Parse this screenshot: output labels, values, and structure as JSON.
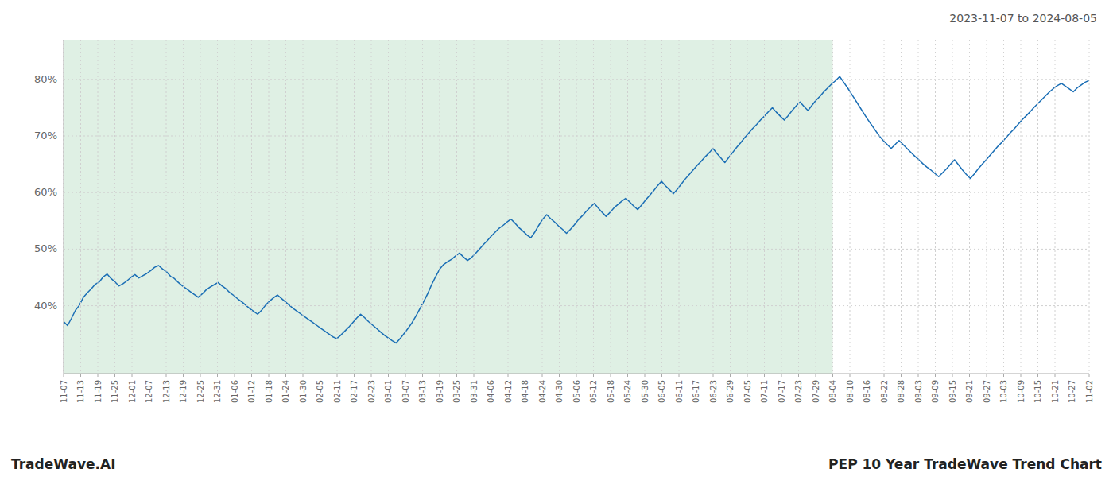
{
  "chart_data": {
    "type": "line",
    "title": "PEP 10 Year TradeWave Trend Chart",
    "subtitle": "2023-11-07 to 2024-08-05",
    "annotations": [
      "TradeWave.AI"
    ],
    "color": "#1a6eb5",
    "grid": true,
    "shaded_region": {
      "from": 0,
      "to": 194.25,
      "color": "#dff0e4"
    },
    "ylim": [
      28,
      87
    ],
    "yticks": [
      {
        "value": 40,
        "label": "40%"
      },
      {
        "value": 50,
        "label": "50%"
      },
      {
        "value": 60,
        "label": "60%"
      },
      {
        "value": 70,
        "label": "70%"
      },
      {
        "value": 80,
        "label": "80%"
      }
    ],
    "xlim": [
      0,
      259
    ],
    "xticks": [
      {
        "value": 0,
        "label": "11-07"
      },
      {
        "value": 4.316667,
        "label": "11-13"
      },
      {
        "value": 8.633333,
        "label": "11-19"
      },
      {
        "value": 12.95,
        "label": "11-25"
      },
      {
        "value": 17.266667,
        "label": "12-01"
      },
      {
        "value": 21.583333,
        "label": "12-07"
      },
      {
        "value": 25.9,
        "label": "12-13"
      },
      {
        "value": 30.216667,
        "label": "12-19"
      },
      {
        "value": 34.533333,
        "label": "12-25"
      },
      {
        "value": 38.85,
        "label": "12-31"
      },
      {
        "value": 43.166667,
        "label": "01-06"
      },
      {
        "value": 47.483333,
        "label": "01-12"
      },
      {
        "value": 51.8,
        "label": "01-18"
      },
      {
        "value": 56.116667,
        "label": "01-24"
      },
      {
        "value": 60.433333,
        "label": "01-30"
      },
      {
        "value": 64.75,
        "label": "02-05"
      },
      {
        "value": 69.066667,
        "label": "02-11"
      },
      {
        "value": 73.383333,
        "label": "02-17"
      },
      {
        "value": 77.7,
        "label": "02-23"
      },
      {
        "value": 82.016667,
        "label": "03-01"
      },
      {
        "value": 86.333333,
        "label": "03-07"
      },
      {
        "value": 90.65,
        "label": "03-13"
      },
      {
        "value": 94.966667,
        "label": "03-19"
      },
      {
        "value": 99.283333,
        "label": "03-25"
      },
      {
        "value": 103.6,
        "label": "03-31"
      },
      {
        "value": 107.916667,
        "label": "04-06"
      },
      {
        "value": 112.233333,
        "label": "04-12"
      },
      {
        "value": 116.55,
        "label": "04-18"
      },
      {
        "value": 120.866667,
        "label": "04-24"
      },
      {
        "value": 125.183333,
        "label": "04-30"
      },
      {
        "value": 129.5,
        "label": "05-06"
      },
      {
        "value": 133.816667,
        "label": "05-12"
      },
      {
        "value": 138.133333,
        "label": "05-18"
      },
      {
        "value": 142.45,
        "label": "05-24"
      },
      {
        "value": 146.766667,
        "label": "05-30"
      },
      {
        "value": 151.083333,
        "label": "06-05"
      },
      {
        "value": 155.4,
        "label": "06-11"
      },
      {
        "value": 159.716667,
        "label": "06-17"
      },
      {
        "value": 164.033333,
        "label": "06-23"
      },
      {
        "value": 168.35,
        "label": "06-29"
      },
      {
        "value": 172.666667,
        "label": "07-05"
      },
      {
        "value": 176.983333,
        "label": "07-11"
      },
      {
        "value": 181.3,
        "label": "07-17"
      },
      {
        "value": 185.616667,
        "label": "07-23"
      },
      {
        "value": 189.933333,
        "label": "07-29"
      },
      {
        "value": 194.25,
        "label": "08-04"
      },
      {
        "value": 198.566667,
        "label": "08-10"
      },
      {
        "value": 202.883333,
        "label": "08-16"
      },
      {
        "value": 207.2,
        "label": "08-22"
      },
      {
        "value": 211.516667,
        "label": "08-28"
      },
      {
        "value": 215.833333,
        "label": "09-03"
      },
      {
        "value": 220.15,
        "label": "09-09"
      },
      {
        "value": 224.466667,
        "label": "09-15"
      },
      {
        "value": 228.783333,
        "label": "09-21"
      },
      {
        "value": 233.1,
        "label": "09-27"
      },
      {
        "value": 237.416667,
        "label": "10-03"
      },
      {
        "value": 241.733333,
        "label": "10-09"
      },
      {
        "value": 246.05,
        "label": "10-15"
      },
      {
        "value": 250.366667,
        "label": "10-21"
      },
      {
        "value": 254.683333,
        "label": "10-27"
      },
      {
        "value": 259,
        "label": "11-02"
      }
    ],
    "values": [
      37.2,
      36.5,
      37.8,
      39.2,
      40.1,
      41.5,
      42.3,
      43.0,
      43.8,
      44.2,
      45.1,
      45.6,
      44.8,
      44.2,
      43.5,
      43.9,
      44.4,
      45.0,
      45.5,
      44.9,
      45.3,
      45.7,
      46.2,
      46.8,
      47.1,
      46.5,
      46.0,
      45.2,
      44.8,
      44.1,
      43.5,
      43.0,
      42.5,
      42.0,
      41.5,
      42.1,
      42.8,
      43.3,
      43.7,
      44.1,
      43.5,
      43.0,
      42.3,
      41.8,
      41.2,
      40.7,
      40.1,
      39.5,
      39.0,
      38.5,
      39.2,
      40.1,
      40.8,
      41.4,
      41.9,
      41.3,
      40.7,
      40.1,
      39.5,
      39.0,
      38.5,
      38.0,
      37.5,
      37.0,
      36.5,
      36.0,
      35.5,
      35.0,
      34.5,
      34.2,
      34.8,
      35.5,
      36.2,
      37.0,
      37.8,
      38.5,
      37.9,
      37.2,
      36.6,
      36.0,
      35.4,
      34.8,
      34.3,
      33.8,
      33.4,
      34.2,
      35.1,
      36.0,
      37.0,
      38.2,
      39.5,
      40.8,
      42.2,
      43.8,
      45.2,
      46.5,
      47.3,
      47.8,
      48.2,
      48.8,
      49.3,
      48.6,
      48.0,
      48.5,
      49.2,
      50.0,
      50.8,
      51.5,
      52.3,
      53.0,
      53.7,
      54.2,
      54.8,
      55.3,
      54.6,
      53.8,
      53.2,
      52.5,
      52.0,
      53.0,
      54.2,
      55.3,
      56.1,
      55.4,
      54.8,
      54.1,
      53.5,
      52.8,
      53.5,
      54.3,
      55.2,
      55.9,
      56.7,
      57.4,
      58.1,
      57.3,
      56.5,
      55.8,
      56.5,
      57.3,
      57.9,
      58.5,
      59.0,
      58.3,
      57.6,
      57.0,
      57.8,
      58.7,
      59.5,
      60.3,
      61.2,
      62.0,
      61.2,
      60.5,
      59.8,
      60.6,
      61.5,
      62.4,
      63.2,
      64.0,
      64.8,
      65.5,
      66.3,
      67.0,
      67.8,
      66.9,
      66.1,
      65.3,
      66.2,
      67.1,
      68.0,
      68.8,
      69.7,
      70.5,
      71.3,
      72.0,
      72.8,
      73.5,
      74.3,
      75.0,
      74.2,
      73.5,
      72.8,
      73.6,
      74.5,
      75.3,
      76.0,
      75.2,
      74.5,
      75.4,
      76.3,
      77.0,
      77.8,
      78.5,
      79.2,
      79.8,
      80.5,
      79.5,
      78.5,
      77.4,
      76.3,
      75.2,
      74.1,
      73.0,
      72.0,
      71.0,
      70.0,
      69.2,
      68.5,
      67.8,
      68.5,
      69.2,
      68.5,
      67.8,
      67.1,
      66.4,
      65.8,
      65.1,
      64.5,
      64.0,
      63.4,
      62.8,
      63.5,
      64.2,
      65.0,
      65.8,
      64.9,
      64.0,
      63.2,
      62.5,
      63.3,
      64.2,
      65.0,
      65.8,
      66.6,
      67.4,
      68.2,
      68.9,
      69.7,
      70.5,
      71.2,
      72.0,
      72.8,
      73.5,
      74.2,
      75.0,
      75.7,
      76.4,
      77.1,
      77.8,
      78.4,
      78.9,
      79.3,
      78.8,
      78.3,
      77.8,
      78.5,
      79.0,
      79.5,
      79.8
    ]
  }
}
